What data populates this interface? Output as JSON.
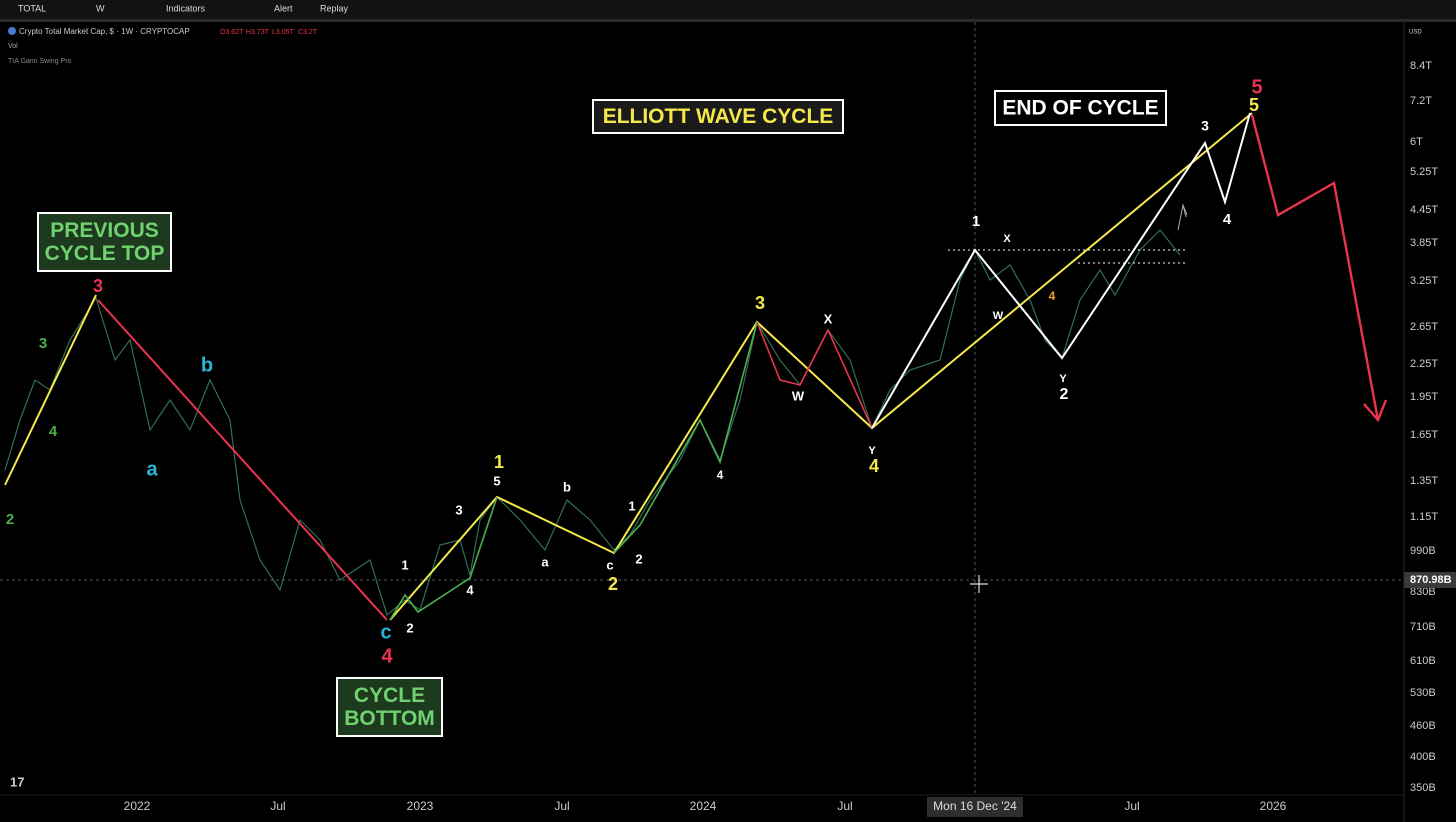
{
  "toolbar": {
    "symbol": "TOTAL",
    "interval": "W",
    "indicators": "Indicators",
    "alert": "Alert",
    "replay": "Replay"
  },
  "legend": {
    "title": "Crypto Total Market Cap, $ · 1W · CRYPTOCAP",
    "ohlc": [
      "O3.62T",
      "H3.73T",
      "L3.05T",
      "C3.2T"
    ],
    "vol": "Vol",
    "indicator": "TIA Gann Swing Pro"
  },
  "currency": "USD",
  "price_axis": [
    "8.4T",
    "7.2T",
    "6T",
    "5.25T",
    "4.45T",
    "3.85T",
    "3.25T",
    "2.65T",
    "2.25T",
    "1.95T",
    "1.65T",
    "1.35T",
    "1.15T",
    "990B",
    "830B",
    "710B",
    "610B",
    "530B",
    "460B",
    "400B",
    "350B"
  ],
  "crosshair_price": "870.98B",
  "time_axis": [
    "2022",
    "Jul",
    "2023",
    "Jul",
    "2024",
    "Jul",
    "Jul",
    "2026"
  ],
  "crosshair_time": "Mon 16 Dec '24",
  "annotations": [
    {
      "lines": [
        "ELLIOTT WAVE CYCLE"
      ],
      "color": "#f5e94a",
      "background": "#1a1a1a"
    },
    {
      "lines": [
        "END OF CYCLE"
      ],
      "color": "#ffffff",
      "background": "#000000"
    },
    {
      "lines": [
        "PREVIOUS",
        "CYCLE TOP"
      ],
      "color": "#6fd16f",
      "background": "#1e3a1e"
    },
    {
      "lines": [
        "CYCLE",
        "BOTTOM"
      ],
      "color": "#6fd16f",
      "background": "#1e3a1e"
    }
  ],
  "wave_labels": [
    {
      "text": "1",
      "color": "#f5e94a"
    },
    {
      "text": "2",
      "color": "#f5e94a"
    },
    {
      "text": "3",
      "color": "#f5e94a"
    },
    {
      "text": "4",
      "color": "#f5e94a"
    },
    {
      "text": "5",
      "color": "#f5e94a"
    },
    {
      "text": "3",
      "color": "#e8344e"
    },
    {
      "text": "4",
      "color": "#e8344e"
    },
    {
      "text": "5",
      "color": "#e8344e"
    },
    {
      "text": "b",
      "color": "#29b6d6"
    },
    {
      "text": "a",
      "color": "#29b6d6"
    },
    {
      "text": "c",
      "color": "#29b6d6"
    },
    {
      "text": "3",
      "color": "#4caf50"
    },
    {
      "text": "4",
      "color": "#4caf50"
    },
    {
      "text": "2",
      "color": "#4caf50"
    },
    {
      "text": "1",
      "color": "#ffffff"
    },
    {
      "text": "2",
      "color": "#ffffff"
    },
    {
      "text": "3",
      "color": "#ffffff"
    },
    {
      "text": "4",
      "color": "#ffffff"
    },
    {
      "text": "5",
      "color": "#ffffff"
    },
    {
      "text": "3",
      "color": "#ffffff"
    },
    {
      "text": "1",
      "color": "#ffffff"
    },
    {
      "text": "2",
      "color": "#ffffff"
    },
    {
      "text": "4",
      "color": "#ffffff"
    },
    {
      "text": "b",
      "color": "#ffffff"
    },
    {
      "text": "a",
      "color": "#ffffff"
    },
    {
      "text": "c",
      "color": "#ffffff"
    },
    {
      "text": "2",
      "color": "#ffffff"
    },
    {
      "text": "1",
      "color": "#ffffff"
    },
    {
      "text": "X",
      "color": "#ffffff"
    },
    {
      "text": "W",
      "color": "#ffffff"
    },
    {
      "text": "Y",
      "color": "#ffffff"
    },
    {
      "text": "4",
      "color": "#ffffff"
    },
    {
      "text": "X",
      "color": "#ffffff"
    },
    {
      "text": "W",
      "color": "#ffffff"
    },
    {
      "text": "Y",
      "color": "#ffffff"
    },
    {
      "text": "4",
      "color": "#f0a030"
    }
  ]
}
